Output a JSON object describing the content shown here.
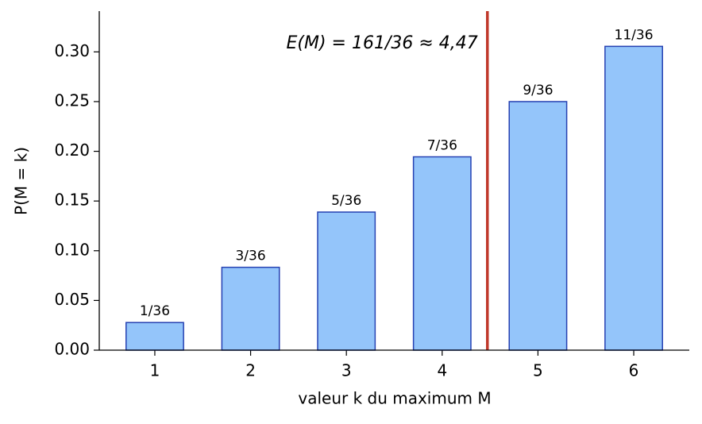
{
  "chart_data": {
    "type": "bar",
    "x": [
      1,
      2,
      3,
      4,
      5,
      6
    ],
    "values": [
      0.027778,
      0.083333,
      0.138889,
      0.194444,
      0.25,
      0.305556
    ],
    "value_labels": [
      "1/36",
      "3/36",
      "5/36",
      "7/36",
      "9/36",
      "11/36"
    ],
    "color": "#94c5fa",
    "edgecolor": "#2541b2",
    "xlim": [
      0.42,
      6.58
    ],
    "xticks": [
      1,
      2,
      3,
      4,
      5,
      6
    ],
    "ylim": [
      0,
      0.341
    ],
    "yticks": [
      {
        "value": 0,
        "label": "0.00"
      },
      {
        "value": 0.05,
        "label": "0.05"
      },
      {
        "value": 0.1,
        "label": "0.10"
      },
      {
        "value": 0.15,
        "label": "0.15"
      },
      {
        "value": 0.2,
        "label": "0.20"
      },
      {
        "value": 0.25,
        "label": "0.25"
      },
      {
        "value": 0.3,
        "label": "0.30"
      }
    ],
    "xlabel": "valeur k du maximum M",
    "ylabel": "P(M = k)",
    "vline": {
      "x": 4.472222,
      "label": "E(M) = 161/36 ≈ 4,47",
      "color": "#c0392b"
    }
  }
}
